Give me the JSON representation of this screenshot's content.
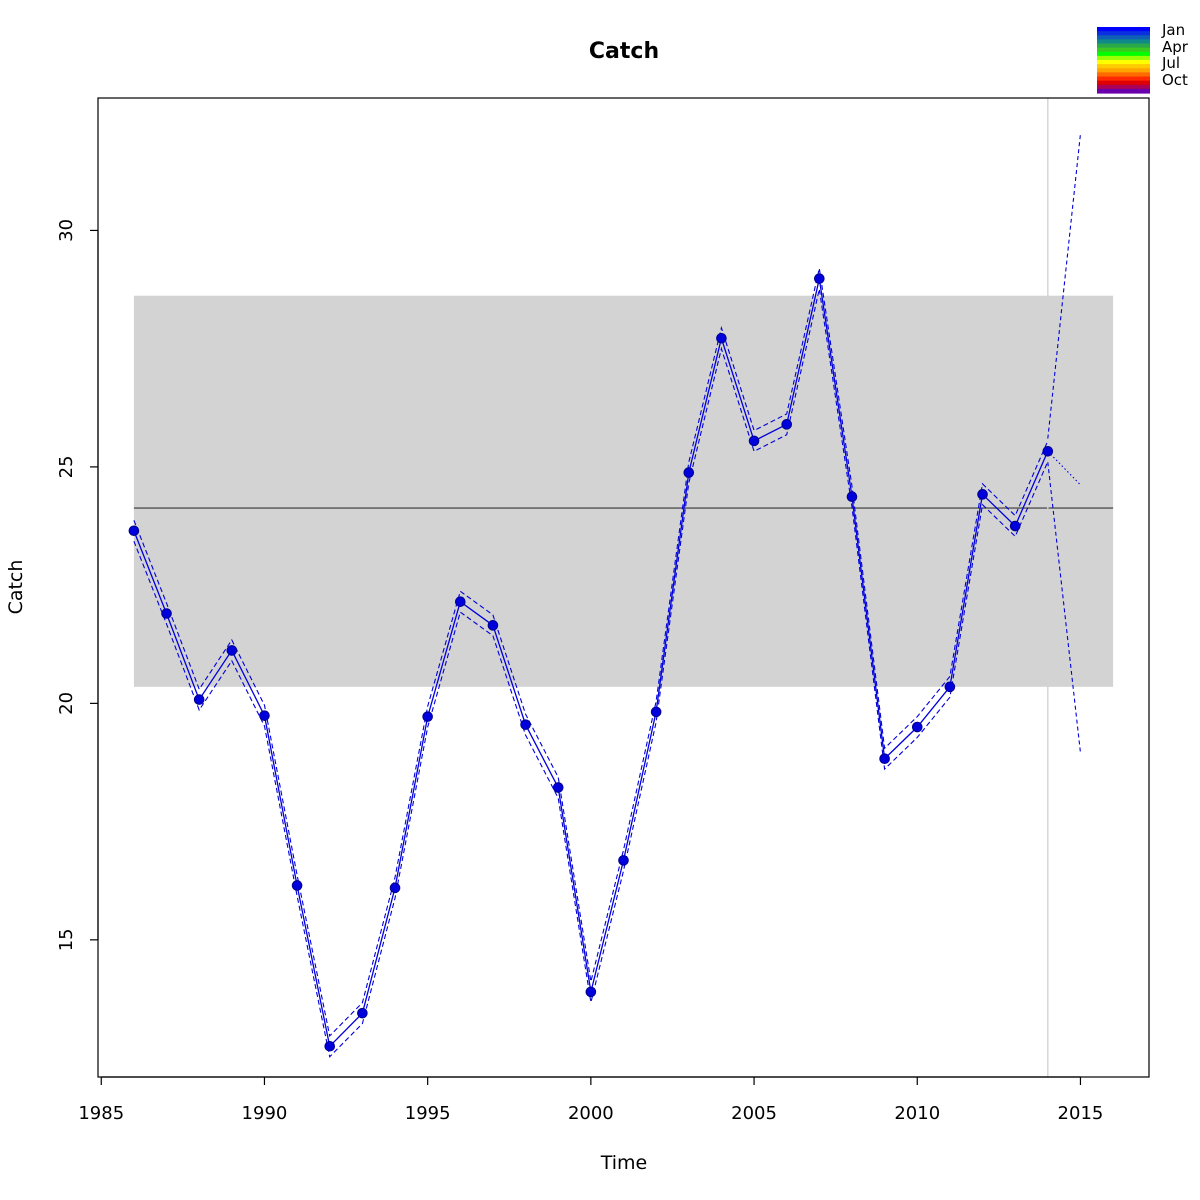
{
  "chart_data": {
    "type": "line",
    "title": "Catch",
    "xlabel": "Time",
    "ylabel": "Catch",
    "xlim": [
      1984.9,
      2017.1
    ],
    "ylim": [
      12.1,
      32.8
    ],
    "x_ticks": [
      1985,
      1990,
      1995,
      2000,
      2005,
      2010,
      2015
    ],
    "y_ticks": [
      15,
      20,
      25,
      30
    ],
    "mean_line": 24.13,
    "band": {
      "x": [
        1986,
        2016
      ],
      "y": [
        20.35,
        28.62
      ]
    },
    "forecast_origin": 2014,
    "series": [
      {
        "x": [
          1986,
          1987,
          1988,
          1989,
          1990,
          1991,
          1992,
          1993,
          1994,
          1995,
          1996,
          1997,
          1998,
          1999,
          2000,
          2001,
          2002,
          2003,
          2004,
          2005,
          2006,
          2007,
          2008,
          2009,
          2010,
          2011,
          2012,
          2013,
          2014
        ],
        "values": [
          23.65,
          21.9,
          20.08,
          21.12,
          19.74,
          16.15,
          12.75,
          13.45,
          16.1,
          19.72,
          22.15,
          21.65,
          19.55,
          18.22,
          13.9,
          16.68,
          19.82,
          24.88,
          27.72,
          25.55,
          25.9,
          28.98,
          24.37,
          18.83,
          19.5,
          20.35,
          24.42,
          23.75,
          25.33
        ]
      }
    ],
    "forecast": {
      "x": [
        2014,
        2015
      ],
      "upper": [
        25.6,
        32.05
      ],
      "lower": [
        25.1,
        18.95
      ],
      "point": [
        25.33,
        24.62
      ]
    },
    "legend": {
      "position": "top-right",
      "labels": [
        "Jan",
        "Apr",
        "Jul",
        "Oct"
      ]
    },
    "colors": {
      "series": "#0000dd",
      "band": "#d3d3d3",
      "mean": "#666666",
      "vline": "#d3d3d3",
      "legend_scale": [
        "#0000ff",
        "#0a2fe0",
        "#0f5fb8",
        "#0f8a88",
        "#2aa84a",
        "#3cc81e",
        "#00ff00",
        "#9aff00",
        "#ffff00",
        "#ffcc00",
        "#ffa500",
        "#ff6a00",
        "#ff2a00",
        "#e00000",
        "#aa0055",
        "#6a00aa"
      ]
    }
  }
}
